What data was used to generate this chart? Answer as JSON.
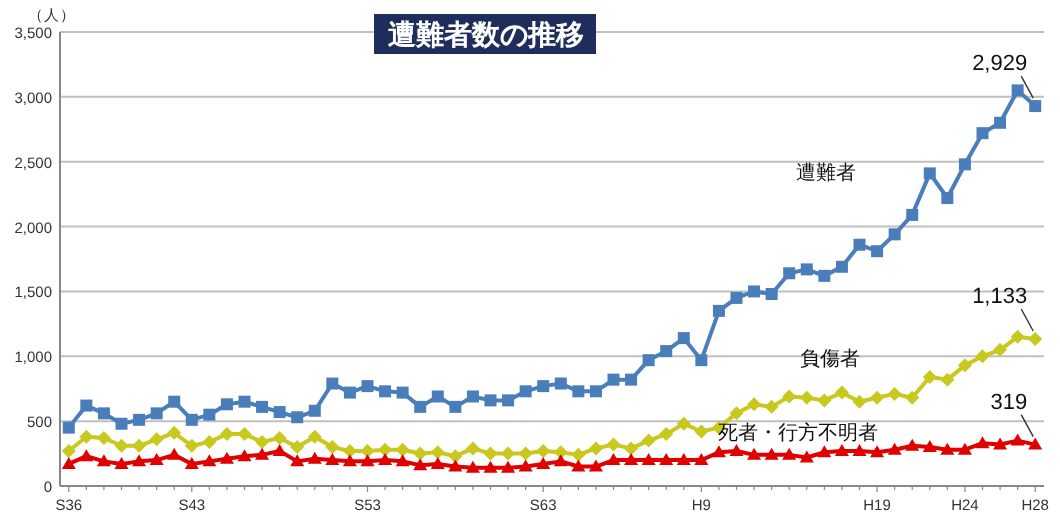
{
  "chart_data": {
    "type": "line",
    "title": "遭難者数の推移",
    "ylabel": "（人）",
    "legend": false,
    "grid": "y",
    "categories": [
      "S36",
      null,
      null,
      null,
      null,
      null,
      null,
      "S43",
      null,
      null,
      null,
      null,
      null,
      null,
      null,
      null,
      null,
      "S53",
      null,
      null,
      null,
      null,
      null,
      null,
      null,
      null,
      null,
      "S63",
      null,
      null,
      null,
      null,
      null,
      null,
      null,
      null,
      "H9",
      null,
      null,
      null,
      null,
      null,
      null,
      null,
      null,
      null,
      "H19",
      null,
      null,
      null,
      null,
      "H24",
      null,
      null,
      null,
      "H28"
    ],
    "ylim": [
      0,
      3500
    ],
    "yticks": [
      0,
      500,
      {
        "value": 1000,
        "label": "1,000"
      },
      {
        "value": 1500,
        "label": "1,500"
      },
      {
        "value": 2000,
        "label": "2,000"
      },
      {
        "value": 2500,
        "label": "2,500"
      },
      {
        "value": 3000,
        "label": "3,000"
      },
      {
        "value": 3500,
        "label": "3,500"
      }
    ],
    "series": [
      {
        "name": "遭難者",
        "color": "#4a7ebb",
        "marker": "square",
        "values": [
          450,
          620,
          560,
          480,
          510,
          560,
          650,
          510,
          550,
          630,
          650,
          610,
          570,
          530,
          580,
          790,
          720,
          770,
          730,
          720,
          610,
          690,
          610,
          690,
          660,
          660,
          730,
          770,
          790,
          730,
          730,
          820,
          820,
          970,
          1040,
          1140,
          970,
          1350,
          1450,
          1500,
          1480,
          1640,
          1670,
          1620,
          1690,
          1860,
          1810,
          1940,
          2090,
          2410,
          2220,
          2480,
          2720,
          2800,
          3050,
          2929
        ],
        "value_labels": [
          null,
          null,
          null,
          null,
          null,
          null,
          null,
          null,
          null,
          null,
          null,
          null,
          null,
          null,
          null,
          null,
          null,
          null,
          null,
          null,
          null,
          null,
          null,
          null,
          null,
          null,
          null,
          null,
          null,
          null,
          null,
          null,
          null,
          null,
          null,
          null,
          null,
          null,
          null,
          null,
          null,
          null,
          null,
          null,
          null,
          null,
          null,
          null,
          null,
          null,
          null,
          null,
          null,
          null,
          null,
          "2,929"
        ]
      },
      {
        "name": "負傷者",
        "color": "#c8c81e",
        "marker": "diamond",
        "values": [
          270,
          380,
          370,
          310,
          310,
          360,
          410,
          310,
          340,
          400,
          400,
          340,
          370,
          300,
          380,
          300,
          270,
          270,
          280,
          280,
          250,
          260,
          230,
          290,
          250,
          250,
          250,
          270,
          260,
          240,
          290,
          320,
          290,
          350,
          400,
          480,
          420,
          450,
          560,
          630,
          610,
          690,
          680,
          660,
          720,
          650,
          680,
          710,
          680,
          840,
          820,
          930,
          1000,
          1050,
          1150,
          1133
        ],
        "value_labels": [
          null,
          null,
          null,
          null,
          null,
          null,
          null,
          null,
          null,
          null,
          null,
          null,
          null,
          null,
          null,
          null,
          null,
          null,
          null,
          null,
          null,
          null,
          null,
          null,
          null,
          null,
          null,
          null,
          null,
          null,
          null,
          null,
          null,
          null,
          null,
          null,
          null,
          null,
          null,
          null,
          null,
          null,
          null,
          null,
          null,
          null,
          null,
          null,
          null,
          null,
          null,
          null,
          null,
          null,
          null,
          "1,133"
        ]
      },
      {
        "name": "死者・行方不明者",
        "color": "#e00000",
        "marker": "triangle",
        "values": [
          170,
          230,
          190,
          170,
          190,
          200,
          240,
          170,
          190,
          210,
          230,
          240,
          270,
          190,
          210,
          200,
          190,
          190,
          200,
          190,
          160,
          170,
          150,
          140,
          140,
          140,
          150,
          170,
          190,
          150,
          150,
          200,
          200,
          200,
          200,
          200,
          200,
          260,
          270,
          240,
          240,
          240,
          220,
          260,
          270,
          270,
          260,
          280,
          310,
          300,
          280,
          280,
          330,
          320,
          350,
          319
        ],
        "value_labels": [
          null,
          null,
          null,
          null,
          null,
          null,
          null,
          null,
          null,
          null,
          null,
          null,
          null,
          null,
          null,
          null,
          null,
          null,
          null,
          null,
          null,
          null,
          null,
          null,
          null,
          null,
          null,
          null,
          null,
          null,
          null,
          null,
          null,
          null,
          null,
          null,
          null,
          null,
          null,
          null,
          null,
          null,
          null,
          null,
          null,
          null,
          null,
          null,
          null,
          null,
          null,
          null,
          null,
          null,
          null,
          "319"
        ]
      }
    ]
  }
}
